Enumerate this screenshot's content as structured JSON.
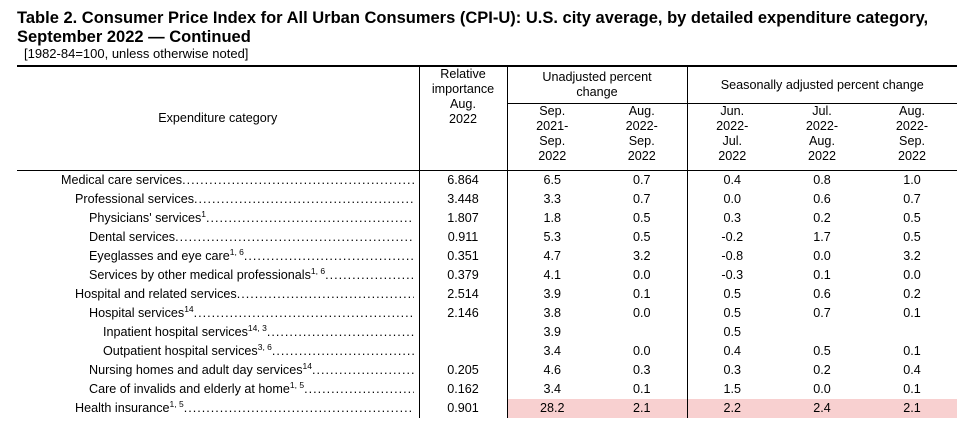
{
  "title": "Table 2. Consumer Price Index for All Urban Consumers (CPI-U): U.S. city average, by detailed expenditure category, September 2022 — Continued",
  "subtitle": "[1982-84=100, unless otherwise noted]",
  "headers": {
    "category": "Expenditure category",
    "relative": [
      "Relative",
      "importance",
      "Aug.",
      "2022"
    ],
    "unadjusted": "Unadjusted percent change",
    "seasonal": "Seasonally adjusted percent change",
    "periods": [
      [
        "Sep.",
        "2021-",
        "Sep.",
        "2022"
      ],
      [
        "Aug.",
        "2022-",
        "Sep.",
        "2022"
      ],
      [
        "Jun.",
        "2022-",
        "Jul.",
        "2022"
      ],
      [
        "Jul.",
        "2022-",
        "Aug.",
        "2022"
      ],
      [
        "Aug.",
        "2022-",
        "Sep.",
        "2022"
      ]
    ]
  },
  "highlight_color": "#f8d0d0",
  "rows": [
    {
      "label": "Medical care services",
      "sup": "",
      "indent": 0,
      "rel": "6.864",
      "v": [
        "6.5",
        "0.7",
        "0.4",
        "0.8",
        "1.0"
      ]
    },
    {
      "label": "Professional services",
      "sup": "",
      "indent": 1,
      "rel": "3.448",
      "v": [
        "3.3",
        "0.7",
        "0.0",
        "0.6",
        "0.7"
      ]
    },
    {
      "label": "Physicians' services",
      "sup": "1",
      "indent": 2,
      "rel": "1.807",
      "v": [
        "1.8",
        "0.5",
        "0.3",
        "0.2",
        "0.5"
      ]
    },
    {
      "label": "Dental services",
      "sup": "",
      "indent": 2,
      "rel": "0.911",
      "v": [
        "5.3",
        "0.5",
        "-0.2",
        "1.7",
        "0.5"
      ]
    },
    {
      "label": "Eyeglasses and eye care",
      "sup": "1, 6",
      "indent": 2,
      "rel": "0.351",
      "v": [
        "4.7",
        "3.2",
        "-0.8",
        "0.0",
        "3.2"
      ]
    },
    {
      "label": "Services by other medical professionals",
      "sup": "1, 6",
      "indent": 2,
      "rel": "0.379",
      "v": [
        "4.1",
        "0.0",
        "-0.3",
        "0.1",
        "0.0"
      ]
    },
    {
      "label": "Hospital and related services",
      "sup": "",
      "indent": 1,
      "rel": "2.514",
      "v": [
        "3.9",
        "0.1",
        "0.5",
        "0.6",
        "0.2"
      ]
    },
    {
      "label": "Hospital services",
      "sup": "14",
      "indent": 2,
      "rel": "2.146",
      "v": [
        "3.8",
        "0.0",
        "0.5",
        "0.7",
        "0.1"
      ]
    },
    {
      "label": "Inpatient hospital services",
      "sup": "14, 3",
      "indent": 3,
      "rel": "",
      "v": [
        "3.9",
        "",
        "0.5",
        "",
        ""
      ]
    },
    {
      "label": "Outpatient hospital services",
      "sup": "3, 6",
      "indent": 3,
      "rel": "",
      "v": [
        "3.4",
        "0.0",
        "0.4",
        "0.5",
        "0.1"
      ]
    },
    {
      "label": "Nursing homes and adult day services",
      "sup": "14",
      "indent": 2,
      "rel": "0.205",
      "v": [
        "4.6",
        "0.3",
        "0.3",
        "0.2",
        "0.4"
      ]
    },
    {
      "label": "Care of invalids and elderly at home",
      "sup": "1, 5",
      "indent": 2,
      "rel": "0.162",
      "v": [
        "3.4",
        "0.1",
        "1.5",
        "0.0",
        "0.1"
      ]
    },
    {
      "label": "Health insurance",
      "sup": "1, 5",
      "indent": 1,
      "rel": "0.901",
      "v": [
        "28.2",
        "2.1",
        "2.2",
        "2.4",
        "2.1"
      ],
      "highlight": true
    }
  ]
}
